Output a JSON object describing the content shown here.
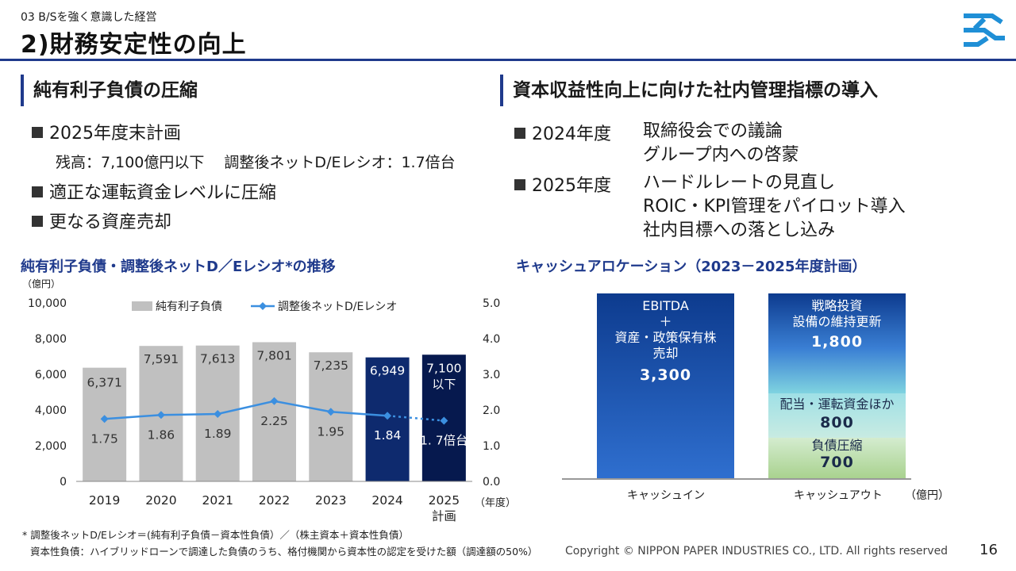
{
  "header": {
    "section": "03  B/Sを強く意識した経営",
    "title": "2)財務安定性の向上"
  },
  "left": {
    "heading": "純有利子負債の圧縮",
    "bullet1": "2025年度末計画",
    "bullet1_sub": "残高：7,100億円以下　 調整後ネットD/Eレシオ：1.7倍台",
    "bullet2": "適正な運転資金レベルに圧縮",
    "bullet3": "更なる資産売却"
  },
  "right": {
    "heading": "資本収益性向上に向けた社内管理指標の導入",
    "b1_year": "2024年度",
    "b1_lines": [
      "取締役会での議論",
      "グループ内への啓蒙"
    ],
    "b2_year": "2025年度",
    "b2_lines": [
      "ハードルレートの見直し",
      "ROIC・KPI管理をパイロット導入",
      "社内目標への落とし込み"
    ]
  },
  "chart_data": [
    {
      "type": "bar",
      "title": "純有利子負債・調整後ネットD／Eレシオ*の推移",
      "y_unit": "（億円）",
      "x_unit": "（年度）",
      "categories": [
        "2019",
        "2020",
        "2021",
        "2022",
        "2023",
        "2024",
        "2025"
      ],
      "category_sub": [
        "",
        "",
        "",
        "",
        "",
        "",
        "計画"
      ],
      "ylim": [
        0,
        10000
      ],
      "yticks": [
        "0",
        "2,000",
        "4,000",
        "6,000",
        "8,000",
        "10,000"
      ],
      "y2lim": [
        0,
        5
      ],
      "y2ticks": [
        "0.0",
        "1.0",
        "2.0",
        "3.0",
        "4.0",
        "5.0"
      ],
      "legend": "top",
      "series": [
        {
          "name": "純有利子負債",
          "kind": "bar",
          "values": [
            6371,
            7591,
            7613,
            7801,
            7235,
            6949,
            7100
          ],
          "labels": [
            "6,371",
            "7,591",
            "7,613",
            "7,801",
            "7,235",
            "6,949",
            "7,100"
          ],
          "label_extra": "以下"
        },
        {
          "name": "調整後ネットD/Eレシオ",
          "kind": "line",
          "axis": "right",
          "values": [
            1.75,
            1.86,
            1.89,
            2.25,
            1.95,
            1.84,
            1.7
          ],
          "labels": [
            "1.75",
            "1.86",
            "1.89",
            "2.25",
            "1.95",
            "1.84",
            "1. 7倍台"
          ]
        }
      ],
      "colors": {
        "bar": "#c0c0c0",
        "bar_2024": "#0e2a6e",
        "bar_2025": "#06194e",
        "line": "#3b8fe0"
      }
    },
    {
      "type": "bar",
      "title": "キャッシュアロケーション（2023－2025年度計画）",
      "unit": "（億円）",
      "categories": [
        "キャッシュイン",
        "キャッシュアウト"
      ],
      "ylim": [
        0,
        3300
      ],
      "in": [
        {
          "label": "EBITDA",
          "plus": "＋",
          "label2": "資産・政策保有株",
          "label3": "売却",
          "value": 3300,
          "display": "3,300"
        }
      ],
      "out": [
        {
          "label": "戦略投資",
          "label2": "設備の維持更新",
          "value": 1800,
          "display": "1,800"
        },
        {
          "label": "配当・運転資金ほか",
          "value": 800,
          "display": "800"
        },
        {
          "label": "負債圧縮",
          "value": 700,
          "display": "700"
        }
      ]
    }
  ],
  "footer": {
    "note1": "* 調整後ネットD/Eレシオ＝(純有利子負債－資本性負債）／（株主資本＋資本性負債）",
    "note2": "資本性負債：ハイブリッドローンで調達した負債のうち、格付機関から資本性の認定を受けた額（調達額の50%）",
    "copyright": "Copyright © NIPPON PAPER INDUSTRIES CO., LTD. All rights reserved",
    "page": "16"
  }
}
